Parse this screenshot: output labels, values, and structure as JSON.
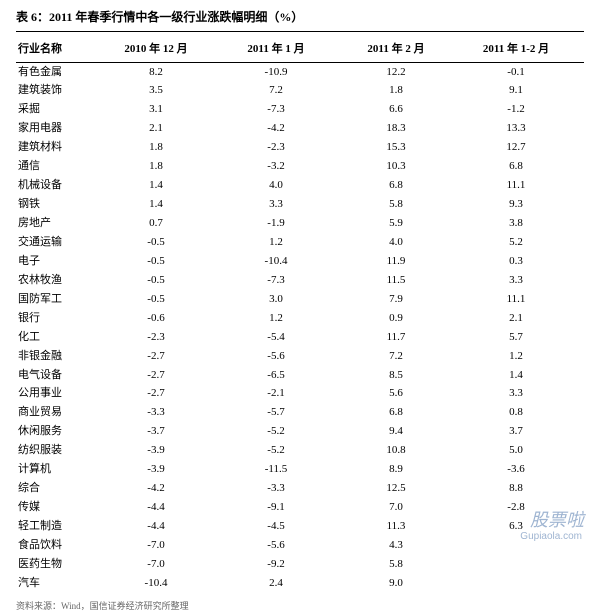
{
  "title": "表 6：2011 年春季行情中各一级行业涨跌幅明细（%）",
  "columns": {
    "name": "行业名称",
    "c1": "2010 年 12 月",
    "c2": "2011 年 1 月",
    "c3": "2011 年 2 月",
    "c4": "2011 年 1-2 月"
  },
  "rows": [
    {
      "name": "有色金属",
      "c1": "8.2",
      "c2": "-10.9",
      "c3": "12.2",
      "c4": "-0.1"
    },
    {
      "name": "建筑装饰",
      "c1": "3.5",
      "c2": "7.2",
      "c3": "1.8",
      "c4": "9.1"
    },
    {
      "name": "采掘",
      "c1": "3.1",
      "c2": "-7.3",
      "c3": "6.6",
      "c4": "-1.2"
    },
    {
      "name": "家用电器",
      "c1": "2.1",
      "c2": "-4.2",
      "c3": "18.3",
      "c4": "13.3"
    },
    {
      "name": "建筑材料",
      "c1": "1.8",
      "c2": "-2.3",
      "c3": "15.3",
      "c4": "12.7"
    },
    {
      "name": "通信",
      "c1": "1.8",
      "c2": "-3.2",
      "c3": "10.3",
      "c4": "6.8"
    },
    {
      "name": "机械设备",
      "c1": "1.4",
      "c2": "4.0",
      "c3": "6.8",
      "c4": "11.1"
    },
    {
      "name": "钢铁",
      "c1": "1.4",
      "c2": "3.3",
      "c3": "5.8",
      "c4": "9.3"
    },
    {
      "name": "房地产",
      "c1": "0.7",
      "c2": "-1.9",
      "c3": "5.9",
      "c4": "3.8"
    },
    {
      "name": "交通运输",
      "c1": "-0.5",
      "c2": "1.2",
      "c3": "4.0",
      "c4": "5.2"
    },
    {
      "name": "电子",
      "c1": "-0.5",
      "c2": "-10.4",
      "c3": "11.9",
      "c4": "0.3"
    },
    {
      "name": "农林牧渔",
      "c1": "-0.5",
      "c2": "-7.3",
      "c3": "11.5",
      "c4": "3.3"
    },
    {
      "name": "国防军工",
      "c1": "-0.5",
      "c2": "3.0",
      "c3": "7.9",
      "c4": "11.1"
    },
    {
      "name": "银行",
      "c1": "-0.6",
      "c2": "1.2",
      "c3": "0.9",
      "c4": "2.1"
    },
    {
      "name": "化工",
      "c1": "-2.3",
      "c2": "-5.4",
      "c3": "11.7",
      "c4": "5.7"
    },
    {
      "name": "非银金融",
      "c1": "-2.7",
      "c2": "-5.6",
      "c3": "7.2",
      "c4": "1.2"
    },
    {
      "name": "电气设备",
      "c1": "-2.7",
      "c2": "-6.5",
      "c3": "8.5",
      "c4": "1.4"
    },
    {
      "name": "公用事业",
      "c1": "-2.7",
      "c2": "-2.1",
      "c3": "5.6",
      "c4": "3.3"
    },
    {
      "name": "商业贸易",
      "c1": "-3.3",
      "c2": "-5.7",
      "c3": "6.8",
      "c4": "0.8"
    },
    {
      "name": "休闲服务",
      "c1": "-3.7",
      "c2": "-5.2",
      "c3": "9.4",
      "c4": "3.7"
    },
    {
      "name": "纺织服装",
      "c1": "-3.9",
      "c2": "-5.2",
      "c3": "10.8",
      "c4": "5.0"
    },
    {
      "name": "计算机",
      "c1": "-3.9",
      "c2": "-11.5",
      "c3": "8.9",
      "c4": "-3.6"
    },
    {
      "name": "综合",
      "c1": "-4.2",
      "c2": "-3.3",
      "c3": "12.5",
      "c4": "8.8"
    },
    {
      "name": "传媒",
      "c1": "-4.4",
      "c2": "-9.1",
      "c3": "7.0",
      "c4": "-2.8"
    },
    {
      "name": "轻工制造",
      "c1": "-4.4",
      "c2": "-4.5",
      "c3": "11.3",
      "c4": "6.3"
    },
    {
      "name": "食品饮料",
      "c1": "-7.0",
      "c2": "-5.6",
      "c3": "4.3",
      "c4": ""
    },
    {
      "name": "医药生物",
      "c1": "-7.0",
      "c2": "-9.2",
      "c3": "5.8",
      "c4": ""
    },
    {
      "name": "汽车",
      "c1": "-10.4",
      "c2": "2.4",
      "c3": "9.0",
      "c4": ""
    }
  ],
  "source": "资料来源：Wind，国信证券经济研究所整理",
  "watermark_main": "股票啦",
  "watermark_sub": "Gupiaola.com"
}
